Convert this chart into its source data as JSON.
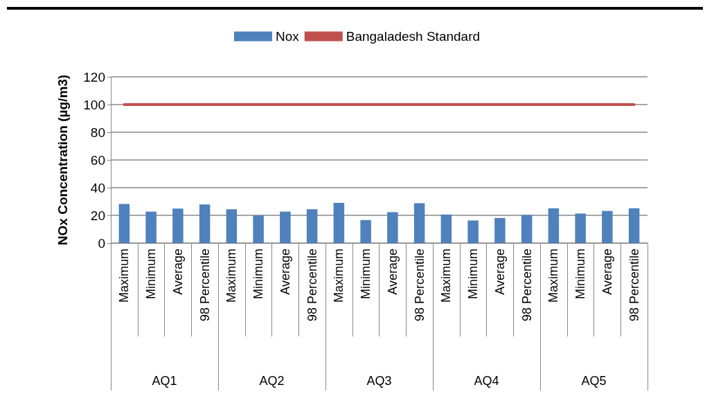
{
  "chart_data": {
    "type": "bar",
    "ylabel": "NOx Concentration (µg/m3)",
    "categories": [
      "Maximum",
      "Minimum",
      "Average",
      "98 Percentile",
      "Maximum",
      "Minimum",
      "Average",
      "98 Percentile",
      "Maximum",
      "Minimum",
      "Average",
      "98 Percentile",
      "Maximum",
      "Minimum",
      "Average",
      "98 Percentile",
      "Maximum",
      "Minimum",
      "Average",
      "98 Percentile"
    ],
    "series": [
      {
        "name": "Nox",
        "color": "#4f81bd",
        "values": [
          28.3,
          22.7,
          24.9,
          27.9,
          24.4,
          20,
          22.7,
          24.4,
          29,
          16.6,
          22.3,
          28.7,
          20.6,
          16.3,
          18.1,
          20.3,
          25.1,
          21.3,
          23.2,
          25.1
        ]
      },
      {
        "name": "Bangaladesh Standard",
        "type": "line",
        "color": "#c0504d",
        "values": [
          100,
          100,
          100,
          100,
          100,
          100,
          100,
          100,
          100,
          100,
          100,
          100,
          100,
          100,
          100,
          100,
          100,
          100,
          100,
          100
        ]
      }
    ],
    "annotations": [
      "AQ1",
      "AQ2",
      "AQ3",
      "AQ4",
      "AQ5"
    ],
    "ylim": [
      0,
      120
    ],
    "yticks": [
      0,
      20,
      40,
      60,
      80,
      100,
      120
    ],
    "grid": "y",
    "legend": "top",
    "marker": "none",
    "line_style": "solid"
  }
}
